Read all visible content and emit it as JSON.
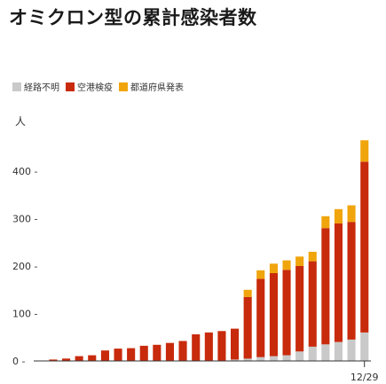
{
  "title": "オミクロン型の累計感染者数",
  "unit_label": "人",
  "colors": {
    "unknown": "#c9c9c9",
    "airport": "#c82a0c",
    "prefecture": "#f0a50c"
  },
  "chart_data": {
    "type": "bar",
    "stacked": true,
    "title": "オミクロン型の累計感染者数",
    "ylabel": "人",
    "ylim": [
      0,
      470
    ],
    "yticks": [
      0,
      100,
      200,
      300,
      400
    ],
    "x_end_label": "12/29",
    "series": [
      {
        "name": "経路不明",
        "key": "unknown",
        "values": [
          0,
          0,
          0,
          0,
          0,
          0,
          0,
          0,
          0,
          0,
          0,
          0,
          0,
          0,
          1,
          3,
          5,
          8,
          10,
          12,
          20,
          30,
          35,
          40,
          45,
          60
        ]
      },
      {
        "name": "空港検疫",
        "key": "airport",
        "values": [
          1,
          3,
          5,
          10,
          12,
          22,
          26,
          27,
          32,
          34,
          38,
          42,
          56,
          60,
          62,
          65,
          130,
          165,
          175,
          180,
          180,
          180,
          245,
          250,
          248,
          360
        ]
      },
      {
        "name": "都道府県発表",
        "key": "prefecture",
        "values": [
          0,
          0,
          0,
          0,
          0,
          0,
          0,
          0,
          0,
          0,
          0,
          0,
          0,
          0,
          0,
          0,
          15,
          18,
          20,
          20,
          20,
          20,
          25,
          30,
          35,
          45
        ]
      }
    ]
  }
}
